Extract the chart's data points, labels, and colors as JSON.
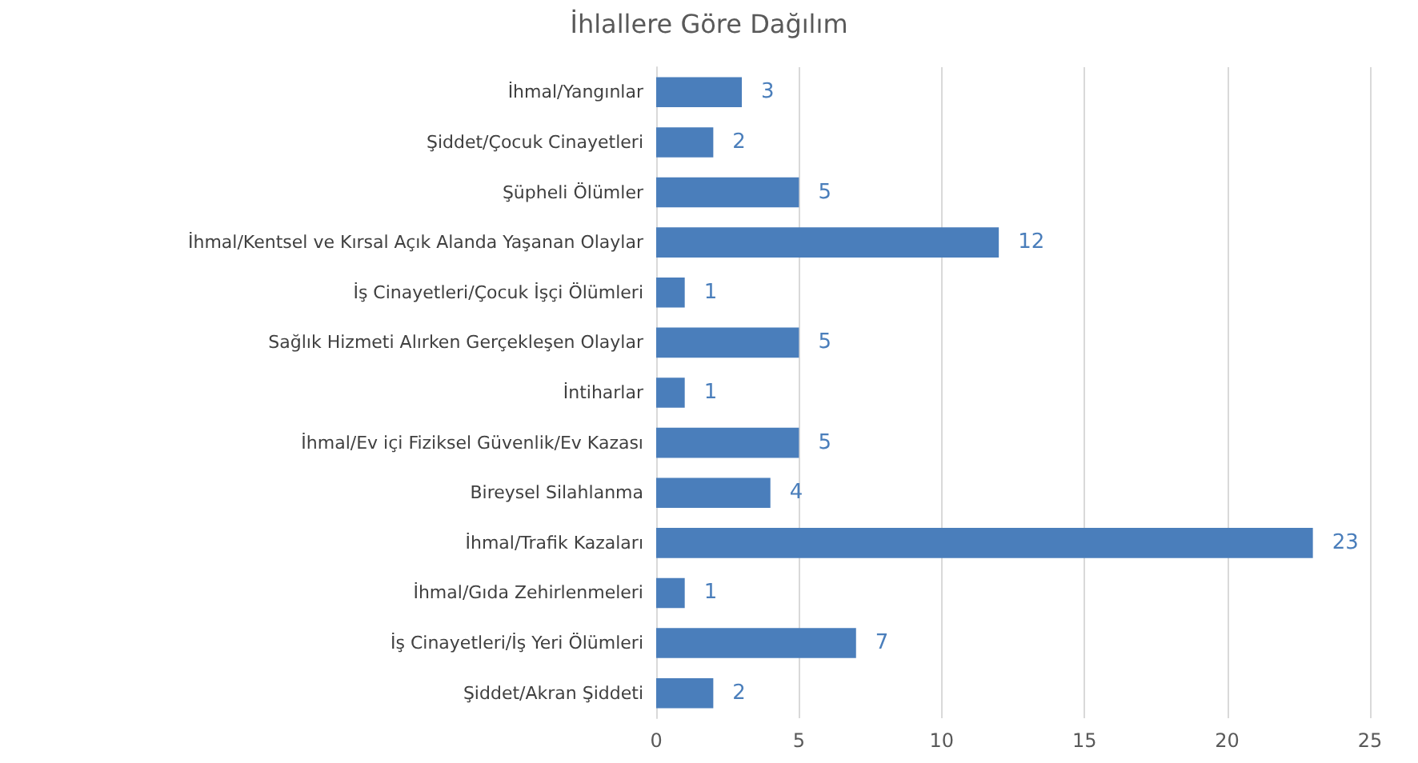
{
  "chart_data": {
    "type": "bar",
    "orientation": "horizontal",
    "title": "İhlallere Göre Dağılım",
    "categories": [
      "İhmal/Yangınlar",
      "Şiddet/Çocuk Cinayetleri",
      "Şüpheli Ölümler",
      "İhmal/Kentsel ve Kırsal Açık Alanda Yaşanan Olaylar",
      "İş Cinayetleri/Çocuk İşçi Ölümleri",
      "Sağlık Hizmeti Alırken Gerçekleşen Olaylar",
      "İntiharlar",
      "İhmal/Ev içi Fiziksel Güvenlik/Ev Kazası",
      "Bireysel Silahlanma",
      "İhmal/Trafik Kazaları",
      "İhmal/Gıda Zehirlenmeleri",
      "İş Cinayetleri/İş Yeri Ölümleri",
      "Şiddet/Akran Şiddeti"
    ],
    "values": [
      3,
      2,
      5,
      12,
      1,
      5,
      1,
      5,
      4,
      23,
      1,
      7,
      2
    ],
    "color": "#4a7ebb",
    "xlim": [
      0,
      25
    ],
    "xticks": [
      0,
      5,
      10,
      15,
      20,
      25
    ],
    "grid": "x",
    "data_labels": true
  }
}
